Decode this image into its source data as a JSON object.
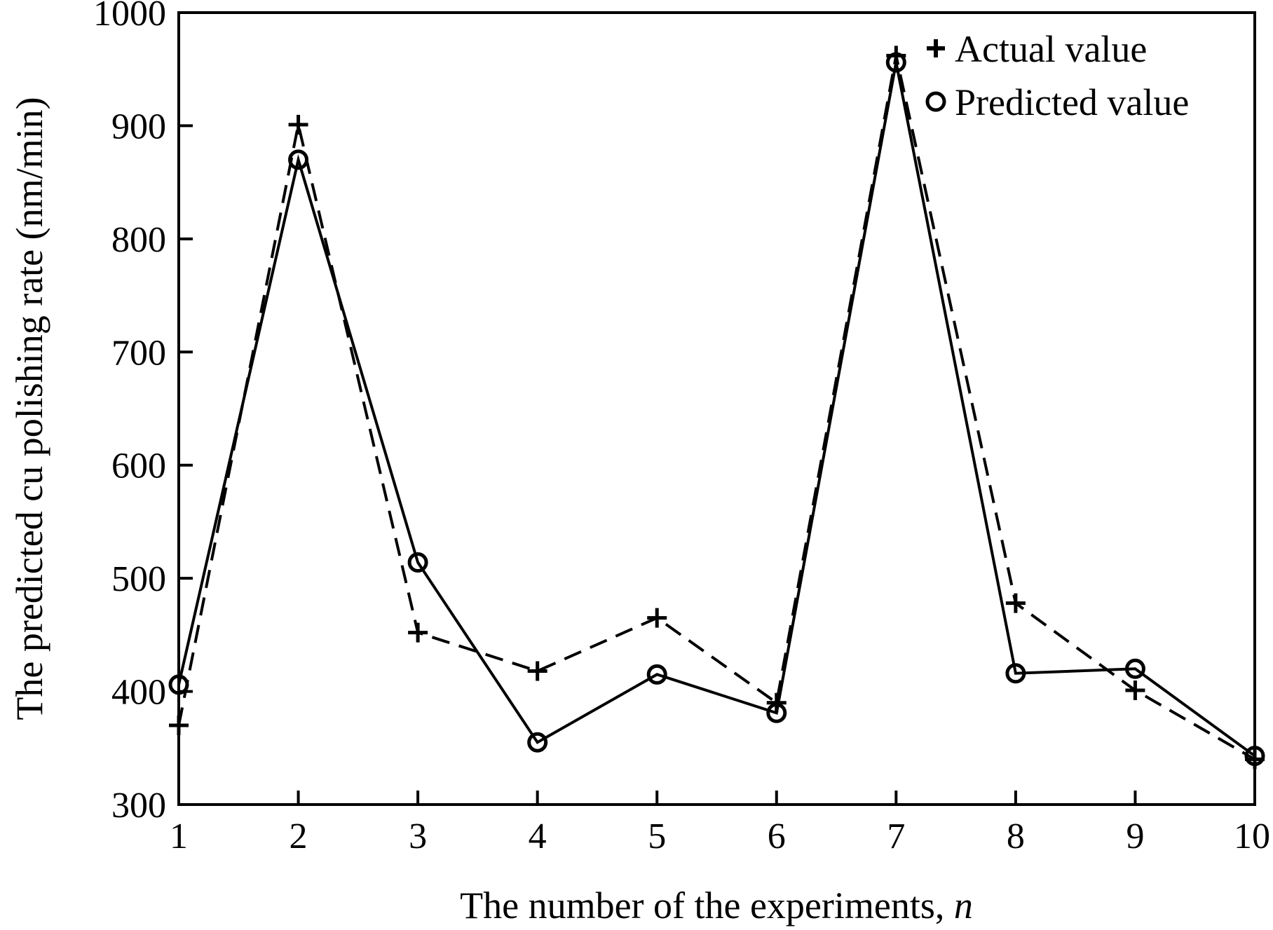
{
  "chart_data": {
    "type": "line",
    "xlabel": "The number of the experiments, ",
    "xlabel_italic": "n",
    "ylabel": "The predicted cu polishing rate (nm/min)",
    "x": [
      1,
      2,
      3,
      4,
      5,
      6,
      7,
      8,
      9,
      10
    ],
    "xlim": [
      1,
      10
    ],
    "ylim": [
      300,
      1000
    ],
    "xticks": [
      "1",
      "2",
      "3",
      "4",
      "5",
      "6",
      "7",
      "8",
      "9",
      "10"
    ],
    "yticks": [
      "300",
      "400",
      "500",
      "600",
      "700",
      "800",
      "900",
      "1000"
    ],
    "grid": false,
    "legend_position": "top-right",
    "series": [
      {
        "name": "Actual value",
        "marker": "plus",
        "line": "dashed",
        "values": [
          370,
          901,
          452,
          418,
          465,
          390,
          962,
          478,
          401,
          340
        ]
      },
      {
        "name": "Predicted value",
        "marker": "circle",
        "line": "solid",
        "values": [
          406,
          870,
          514,
          355,
          415,
          381,
          956,
          416,
          420,
          343
        ]
      }
    ]
  }
}
